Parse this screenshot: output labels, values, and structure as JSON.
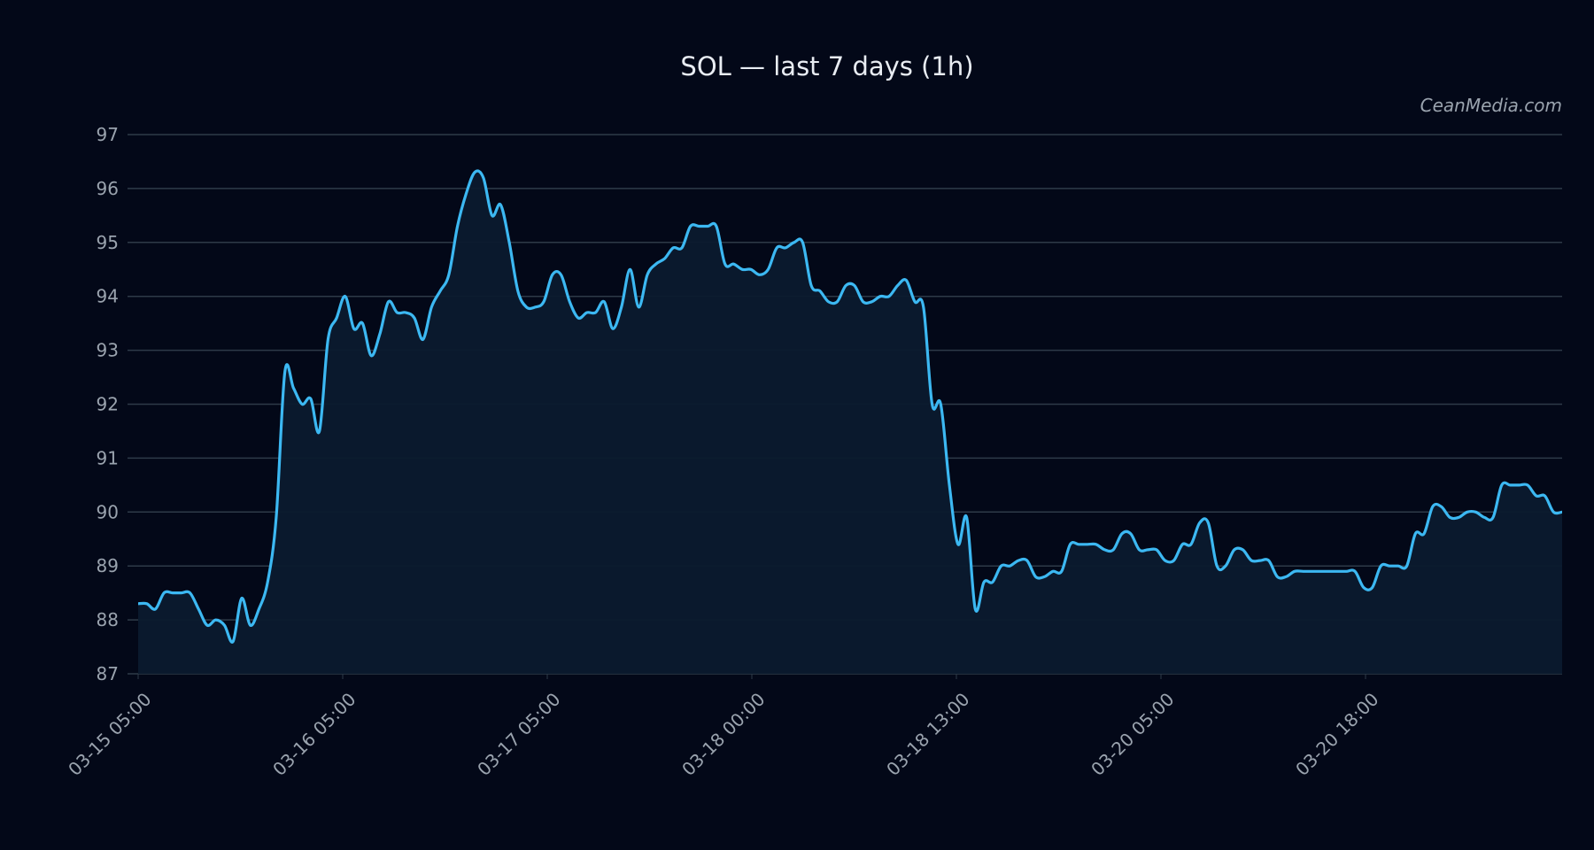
{
  "chart_data": {
    "type": "area",
    "title": "SOL — last 7 days (1h)",
    "watermark": "CeanMedia.com",
    "xlabel": "",
    "ylabel": "",
    "ylim": [
      87,
      97
    ],
    "y_ticks": [
      87,
      88,
      89,
      90,
      91,
      92,
      93,
      94,
      95,
      96,
      97
    ],
    "x_tick_labels": [
      "03-15 05:00",
      "03-16 05:00",
      "03-17 05:00",
      "03-18 00:00",
      "03-18 13:00",
      "03-20 05:00",
      "03-20 18:00"
    ],
    "grid": true,
    "legend": "none",
    "colors": {
      "line": "#3cb8f2",
      "fill": "#0b1a2e",
      "background": "#030818",
      "grid": "#2e3a48",
      "text": "#9aa3ae"
    },
    "series": [
      {
        "values": [
          88.3,
          88.3,
          88.2,
          88.5,
          88.5,
          88.5,
          88.5,
          88.2,
          87.9,
          88.0,
          87.9,
          87.6,
          88.4,
          87.9,
          88.2,
          88.7,
          89.9,
          92.6,
          92.3,
          92.0,
          92.1,
          91.5,
          93.2,
          93.6,
          94.0,
          93.4,
          93.5,
          92.9,
          93.3,
          93.9,
          93.7,
          93.7,
          93.6,
          93.2,
          93.8,
          94.1,
          94.4,
          95.3,
          95.9,
          96.3,
          96.2,
          95.5,
          95.7,
          95.0,
          94.1,
          93.8,
          93.8,
          93.9,
          94.4,
          94.4,
          93.9,
          93.6,
          93.7,
          93.7,
          93.9,
          93.4,
          93.8,
          94.5,
          93.8,
          94.4,
          94.6,
          94.7,
          94.9,
          94.9,
          95.3,
          95.3,
          95.3,
          95.3,
          94.6,
          94.6,
          94.5,
          94.5,
          94.4,
          94.5,
          94.9,
          94.9,
          95.0,
          95.0,
          94.2,
          94.1,
          93.9,
          93.9,
          94.2,
          94.2,
          93.9,
          93.9,
          94.0,
          94.0,
          94.2,
          94.3,
          93.9,
          93.8,
          92.0,
          92.0,
          90.5,
          89.4,
          89.9,
          88.2,
          88.7,
          88.7,
          89.0,
          89.0,
          89.1,
          89.1,
          88.8,
          88.8,
          88.9,
          88.9,
          89.4,
          89.4,
          89.4,
          89.4,
          89.3,
          89.3,
          89.6,
          89.6,
          89.3,
          89.3,
          89.3,
          89.1,
          89.1,
          89.4,
          89.4,
          89.8,
          89.8,
          89.0,
          89.0,
          89.3,
          89.3,
          89.1,
          89.1,
          89.1,
          88.8,
          88.8,
          88.9,
          88.9,
          88.9,
          88.9,
          88.9,
          88.9,
          88.9,
          88.9,
          88.6,
          88.6,
          89.0,
          89.0,
          89.0,
          89.0,
          89.6,
          89.6,
          90.1,
          90.1,
          89.9,
          89.9,
          90.0,
          90.0,
          89.9,
          89.9,
          90.5,
          90.5,
          90.5,
          90.5,
          90.3,
          90.3,
          90.0,
          90.0
        ]
      }
    ]
  }
}
